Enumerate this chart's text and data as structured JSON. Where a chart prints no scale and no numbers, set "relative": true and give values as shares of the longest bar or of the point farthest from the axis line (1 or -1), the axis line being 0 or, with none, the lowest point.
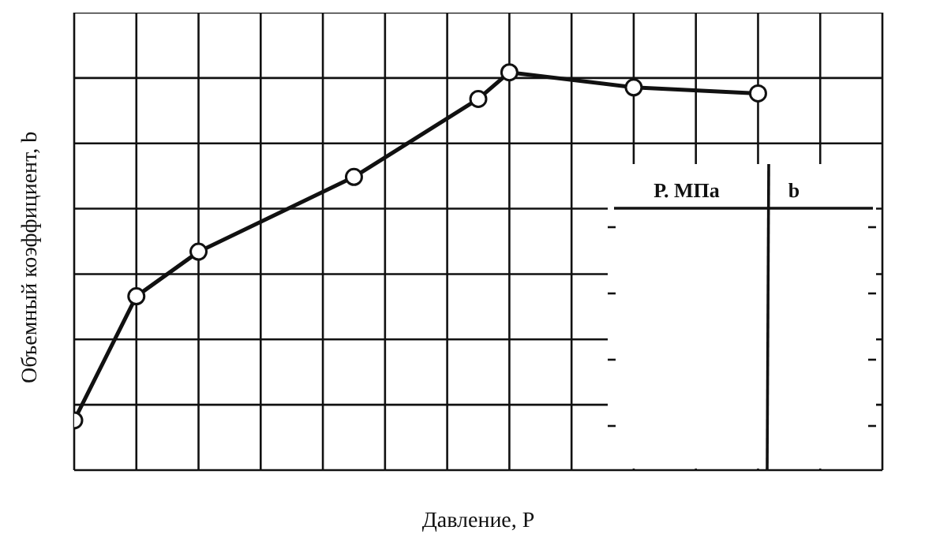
{
  "chart_data": {
    "type": "line",
    "relative": true,
    "xlabel": "Давление, Р",
    "ylabel": "Объемный коэффициент,  b",
    "categories": [
      null,
      null,
      null,
      null,
      null,
      null,
      null,
      null,
      null,
      null,
      null,
      null,
      null,
      null,
      null,
      null,
      null,
      null,
      null,
      null,
      null,
      null,
      null,
      null,
      null,
      null,
      null
    ],
    "grid": true,
    "annotations": [
      "Р. МПа",
      "b"
    ],
    "series": [
      {
        "color": "#111111",
        "marker": "circle",
        "values": [
          0.125,
          null,
          0.437,
          null,
          0.549,
          null,
          null,
          null,
          null,
          0.737,
          null,
          null,
          null,
          0.933,
          1.0,
          null,
          null,
          null,
          0.962,
          null,
          null,
          null,
          0.947,
          null,
          null,
          null,
          null
        ]
      }
    ]
  }
}
